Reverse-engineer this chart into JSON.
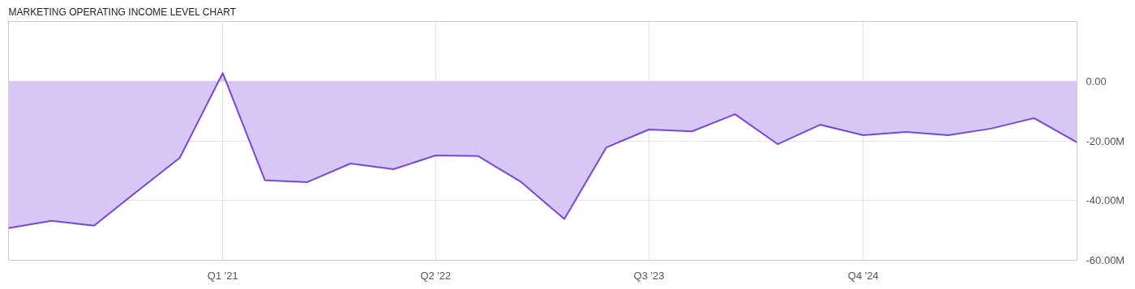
{
  "chart_data": {
    "type": "area",
    "title": "MARKETING OPERATING INCOME LEVEL CHART",
    "x": [
      "2019-10",
      "2020-01",
      "2020-04",
      "2020-07",
      "2020-10",
      "2021-01",
      "2021-04",
      "2021-07",
      "2021-10",
      "2022-01",
      "2022-04",
      "2022-07",
      "2022-10",
      "2023-01",
      "2023-04",
      "2023-07",
      "2023-10",
      "2024-01",
      "2024-04",
      "2024-07",
      "2024-10",
      "2025-01",
      "2025-04",
      "2025-07",
      "2025-10",
      "2026-01"
    ],
    "series": [
      {
        "color": "#7b45dd",
        "values": [
          -49.2,
          -46.8,
          -48.4,
          -37,
          -25.7,
          2.7,
          -33.2,
          -33.8,
          -27.6,
          -29.5,
          -24.9,
          -25.1,
          -33.8,
          -46.2,
          -22.2,
          -16.2,
          -16.8,
          -11.1,
          -21.1,
          -14.6,
          -18.1,
          -17.0,
          -18.1,
          -15.9,
          -12.4,
          -20.5
        ]
      }
    ],
    "xlim": [
      "2019-10",
      "2026-01"
    ],
    "xticks": [
      {
        "value": "2021-01",
        "label": "Q1 '21"
      },
      {
        "value": "2022-04",
        "label": "Q2 '22"
      },
      {
        "value": "2023-07",
        "label": "Q3 '23"
      },
      {
        "value": "2024-10",
        "label": "Q4 '24"
      }
    ],
    "ylim": [
      -60,
      20
    ],
    "yticks": [
      {
        "value": 0,
        "label": "0.00"
      },
      {
        "value": -20,
        "label": "-20.00M"
      },
      {
        "value": -40,
        "label": "-40.00M"
      },
      {
        "value": -60,
        "label": "-60.00M"
      }
    ],
    "grid": true
  }
}
